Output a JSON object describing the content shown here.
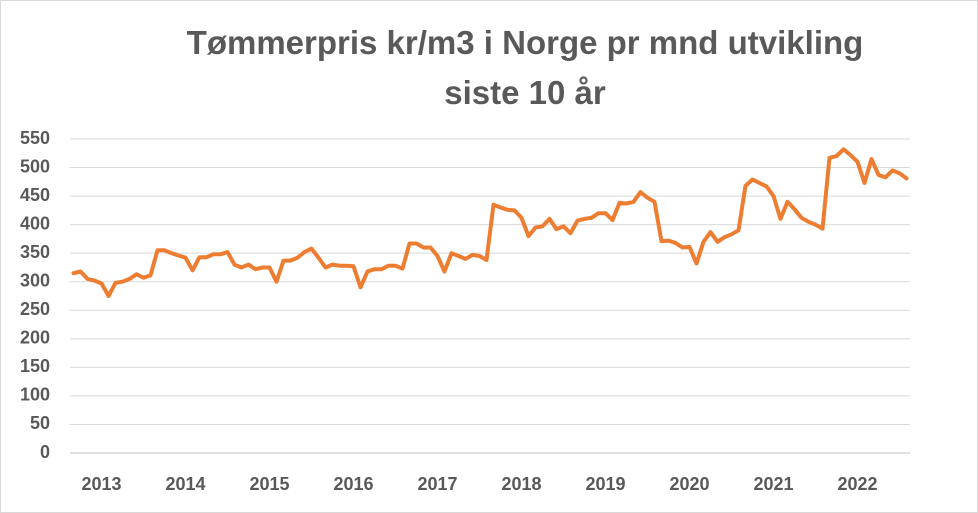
{
  "chart_data": {
    "type": "line",
    "title": "Tømmerpris kr/m3 i Norge pr mnd utvikling siste 10 år",
    "categories": [
      null,
      null,
      null,
      null,
      "2013",
      null,
      null,
      null,
      null,
      null,
      null,
      null,
      null,
      null,
      null,
      null,
      "2014",
      null,
      null,
      null,
      null,
      null,
      null,
      null,
      null,
      null,
      null,
      null,
      "2015",
      null,
      null,
      null,
      null,
      null,
      null,
      null,
      null,
      null,
      null,
      null,
      "2016",
      null,
      null,
      null,
      null,
      null,
      null,
      null,
      null,
      null,
      null,
      null,
      "2017",
      null,
      null,
      null,
      null,
      null,
      null,
      null,
      null,
      null,
      null,
      null,
      "2018",
      null,
      null,
      null,
      null,
      null,
      null,
      null,
      null,
      null,
      null,
      null,
      "2019",
      null,
      null,
      null,
      null,
      null,
      null,
      null,
      null,
      null,
      null,
      null,
      "2020",
      null,
      null,
      null,
      null,
      null,
      null,
      null,
      null,
      null,
      null,
      null,
      "2021",
      null,
      null,
      null,
      null,
      null,
      null,
      null,
      null,
      null,
      null,
      null,
      "2022",
      null,
      null,
      null,
      null,
      null,
      null,
      null
    ],
    "series": [
      {
        "name": "Tømmerpris",
        "color": "#ed7d31",
        "values": [
          315,
          318,
          305,
          302,
          297,
          275,
          298,
          300,
          305,
          313,
          307,
          311,
          355,
          355,
          350,
          346,
          342,
          320,
          343,
          343,
          348,
          348,
          352,
          330,
          325,
          330,
          322,
          325,
          325,
          300,
          337,
          337,
          342,
          352,
          358,
          342,
          325,
          330,
          328,
          328,
          327,
          290,
          318,
          322,
          322,
          328,
          328,
          323,
          367,
          367,
          360,
          360,
          345,
          318,
          350,
          345,
          340,
          347,
          345,
          338,
          435,
          430,
          426,
          425,
          412,
          380,
          395,
          397,
          410,
          392,
          397,
          385,
          407,
          410,
          412,
          420,
          420,
          408,
          438,
          437,
          440,
          457,
          447,
          440,
          371,
          372,
          368,
          360,
          361,
          332,
          370,
          387,
          370,
          378,
          383,
          390,
          468,
          479,
          473,
          467,
          450,
          410,
          440,
          427,
          412,
          405,
          400,
          393,
          517,
          520,
          532,
          522,
          510,
          473,
          515,
          487,
          483,
          495,
          490,
          481
        ]
      }
    ],
    "ylim": [
      0,
      550
    ],
    "yticks": [
      0,
      50,
      100,
      150,
      200,
      250,
      300,
      350,
      400,
      450,
      500,
      550
    ],
    "grid": true
  }
}
